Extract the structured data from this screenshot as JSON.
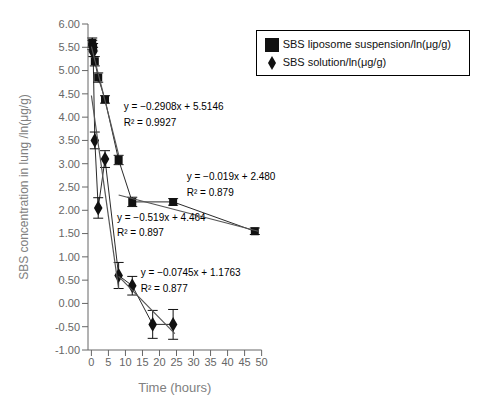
{
  "chart_data": {
    "type": "scatter",
    "xlabel": "Time (hours)",
    "ylabel": "SBS concentration in lung /ln(μg/g)",
    "xlim": [
      -1,
      50
    ],
    "ylim": [
      -1.0,
      6.0
    ],
    "xticks": [
      0,
      5,
      10,
      15,
      20,
      25,
      30,
      35,
      40,
      45,
      50
    ],
    "yticks": [
      {
        "value": -1.0,
        "label": "-1.00"
      },
      {
        "value": -0.5,
        "label": "-0.50"
      },
      {
        "value": 0.0,
        "label": "0.00"
      },
      {
        "value": 0.5,
        "label": "0.50"
      },
      {
        "value": 1.0,
        "label": "1.00"
      },
      {
        "value": 1.5,
        "label": "1.50"
      },
      {
        "value": 2.0,
        "label": "2.00"
      },
      {
        "value": 2.5,
        "label": "2.50"
      },
      {
        "value": 3.0,
        "label": "3.00"
      },
      {
        "value": 3.5,
        "label": "3.50"
      },
      {
        "value": 4.0,
        "label": "4.00"
      },
      {
        "value": 4.5,
        "label": "4.50"
      },
      {
        "value": 5.0,
        "label": "5.00"
      },
      {
        "value": 5.5,
        "label": "5.50"
      },
      {
        "value": 6.0,
        "label": "6.00"
      }
    ],
    "grid": false,
    "legend": "upper right",
    "series": [
      {
        "name": "SBS solution/ln(μg/g)",
        "type": "scatter",
        "marker": "diamond",
        "line_style": "solid",
        "color": "#111111",
        "x": [
          0.25,
          0.5,
          1,
          2,
          4,
          8,
          12,
          18,
          24
        ],
        "values": [
          5.55,
          5.4,
          3.5,
          2.05,
          3.1,
          0.6,
          0.38,
          -0.45,
          -0.45
        ],
        "yerr": [
          0.1,
          0.1,
          0.18,
          0.22,
          0.18,
          0.28,
          0.2,
          0.3,
          0.32
        ]
      },
      {
        "name": "SBS liposome suspension/ln(μg/g)",
        "type": "scatter",
        "marker": "square",
        "line_style": "solid",
        "color": "#111111",
        "x": [
          0.25,
          0.5,
          1,
          2,
          4,
          8,
          12,
          24,
          48
        ],
        "values": [
          5.6,
          5.5,
          5.2,
          4.85,
          4.38,
          3.08,
          2.18,
          2.18,
          1.55
        ],
        "yerr": [
          0.1,
          0.08,
          0.1,
          0.1,
          0.08,
          0.1,
          0.1,
          0.07,
          0.07
        ]
      },
      {
        "type": "line",
        "line_style": "solid",
        "color": "#555555",
        "x": [
          0.0,
          8.0
        ],
        "values": [
          4.464,
          0.312
        ]
      },
      {
        "type": "line",
        "line_style": "solid",
        "color": "#555555",
        "x": [
          8.0,
          24.5
        ],
        "values": [
          0.5803,
          -0.64895
        ]
      },
      {
        "type": "line",
        "line_style": "solid",
        "color": "#555555",
        "x": [
          0.0,
          8.0
        ],
        "values": [
          5.5146,
          3.1882
        ]
      },
      {
        "type": "line",
        "line_style": "solid",
        "color": "#555555",
        "x": [
          8.0,
          49.0
        ],
        "values": [
          2.328,
          1.549
        ]
      }
    ],
    "annotations": [
      {
        "text": "y = −0.2908x + 5.5146",
        "x": 9.5,
        "y": 4.15
      },
      {
        "text": "R² = 0.9927",
        "x": 9.5,
        "y": 3.81
      },
      {
        "text": "y = −0.019x + 2.480",
        "x": 28,
        "y": 2.65
      },
      {
        "text": "R² = 0.879",
        "x": 28,
        "y": 2.31
      },
      {
        "text": "y = −0.519x + 4.464",
        "x": 7.5,
        "y": 1.78
      },
      {
        "text": "R² = 0.897",
        "x": 7.5,
        "y": 1.44
      },
      {
        "text": "y = −0.0745x + 1.1763",
        "x": 14.5,
        "y": 0.58
      },
      {
        "text": "R² = 0.877",
        "x": 14.5,
        "y": 0.24
      }
    ]
  }
}
